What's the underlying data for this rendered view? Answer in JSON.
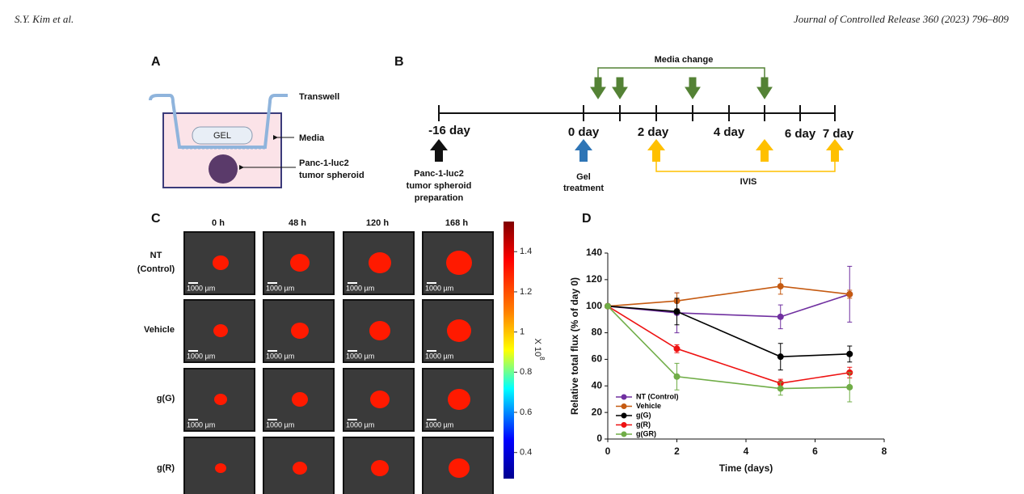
{
  "header": {
    "author": "S.Y. Kim et al.",
    "journal": "Journal of Controlled Release 360 (2023) 796–809"
  },
  "panel_a": {
    "label": "A",
    "gel": "GEL",
    "transwell": "Transwell",
    "media": "Media",
    "spheroid": [
      "Panc-1-luc2",
      "tumor spheroid"
    ]
  },
  "panel_b": {
    "label": "B",
    "media_change": "Media change",
    "days": [
      "-16 day",
      "0 day",
      "2 day",
      "4 day",
      "6 day",
      "7 day"
    ],
    "start_text": [
      "Panc-1-luc2",
      "tumor spheroid",
      "preparation"
    ],
    "gel_text": [
      "Gel",
      "treatment"
    ],
    "ivis": "IVIS"
  },
  "panel_c": {
    "label": "C",
    "columns": [
      "0 h",
      "48 h",
      "120 h",
      "168 h"
    ],
    "rows": [
      [
        "NT",
        "(Control)"
      ],
      [
        "Vehicle"
      ],
      [
        "g(G)"
      ],
      [
        "g(R)"
      ]
    ],
    "scale_bar": "1000 µm",
    "colorbar": {
      "lim": [
        0.27,
        1.55
      ],
      "ticks": [
        0.4,
        0.6,
        0.8,
        1.0,
        1.2,
        1.4
      ],
      "label": "X 10",
      "exponent": "8"
    }
  },
  "panel_d": {
    "label": "D"
  },
  "chart_data": {
    "type": "line",
    "x_label": "Time (days)",
    "y_label": "Relative total flux (% of day 0)",
    "x": [
      0,
      2,
      5,
      7
    ],
    "xlim": [
      0,
      8
    ],
    "xticks": [
      0,
      2,
      4,
      6,
      8
    ],
    "ylim": [
      0,
      140
    ],
    "yticks": [
      0,
      20,
      40,
      60,
      80,
      100,
      120,
      140
    ],
    "legend": "lower-left",
    "series": [
      {
        "name": "NT (Control)",
        "color": "#7030a0",
        "values": [
          100,
          95,
          92,
          109
        ],
        "errors": [
          0,
          15,
          9,
          21
        ]
      },
      {
        "name": "Vehicle",
        "color": "#c55a11",
        "values": [
          100,
          104,
          115,
          109
        ],
        "errors": [
          0,
          6,
          6,
          3
        ]
      },
      {
        "name": "g(G)",
        "color": "#000000",
        "values": [
          100,
          96,
          62,
          64
        ],
        "errors": [
          0,
          10,
          10,
          6
        ]
      },
      {
        "name": "g(R)",
        "color": "#ee1111",
        "values": [
          100,
          68,
          42,
          50
        ],
        "errors": [
          0,
          3,
          3,
          4
        ]
      },
      {
        "name": "g(GR)",
        "color": "#70ad47",
        "values": [
          100,
          47,
          38,
          39
        ],
        "errors": [
          0,
          10,
          5,
          11
        ]
      }
    ]
  }
}
